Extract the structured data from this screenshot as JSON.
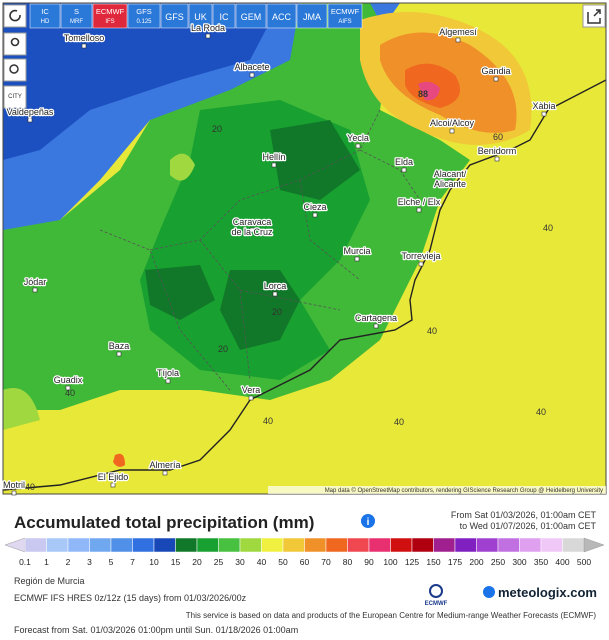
{
  "toolbar": {
    "buttons": [
      {
        "lines": [
          "IC",
          "HD"
        ]
      },
      {
        "lines": [
          "S",
          "MRF"
        ]
      },
      {
        "lines": [
          "ECMWF",
          "IFS"
        ],
        "active": true
      },
      {
        "lines": [
          "GFS",
          "0.125"
        ]
      },
      {
        "lines": [
          "GFS"
        ]
      },
      {
        "lines": [
          "UK"
        ]
      },
      {
        "lines": [
          "IC"
        ]
      },
      {
        "lines": [
          "GEM"
        ]
      },
      {
        "lines": [
          "ACC"
        ]
      },
      {
        "lines": [
          "JMA"
        ]
      },
      {
        "lines": [
          "ECMWF",
          "AIFS"
        ]
      }
    ],
    "city_button": "CITY"
  },
  "map": {
    "cities": [
      [
        "Tomelloso"
      ],
      [
        "La Roda"
      ],
      [
        "Albacete"
      ],
      [
        "Valdepeñas"
      ],
      [
        "Hellín"
      ],
      [
        "Yecla"
      ],
      [
        "Elda"
      ],
      [
        "Alcoi/Alcoy"
      ],
      [
        "Gandia"
      ],
      [
        "Xàbia"
      ],
      [
        "Benidorm"
      ],
      [
        "Algemesí"
      ],
      [
        "Alacant/",
        "Alicante"
      ],
      [
        "Elche / Elx"
      ],
      [
        "Cieza"
      ],
      [
        "Caravaca",
        "de la Cruz"
      ],
      [
        "Murcia"
      ],
      [
        "Torrevieja"
      ],
      [
        "Jódar"
      ],
      [
        "Lorca"
      ],
      [
        "Cartagena"
      ],
      [
        "Baza"
      ],
      [
        "Tíjola"
      ],
      [
        "Guadix"
      ],
      [
        "Vera"
      ],
      [
        "Almería"
      ],
      [
        "El Ejido"
      ],
      [
        "Motril"
      ]
    ],
    "contour_labels": [
      20,
      20,
      20,
      88,
      60,
      40,
      40,
      40,
      40,
      40,
      40,
      40
    ],
    "attribution": "Map data © OpenStreetMap contributors, rendering GIScience Research Group @ Heidelberg University"
  },
  "legend": {
    "title": "Accumulated total precipitation (mm)",
    "period_from": "From Sat 01/03/2026, 01:00am CET",
    "period_to": "to Wed 01/07/2026, 01:00am CET",
    "ticks": [
      0.1,
      1,
      2,
      3,
      5,
      7,
      10,
      15,
      20,
      25,
      30,
      40,
      50,
      60,
      70,
      80,
      90,
      100,
      125,
      150,
      175,
      200,
      250,
      300,
      350,
      400,
      500
    ],
    "colors": [
      "#e0d8f0",
      "#c8c8f0",
      "#a8c8f8",
      "#90b8f8",
      "#70a8f0",
      "#5090e8",
      "#3070e0",
      "#1848b8",
      "#107828",
      "#18a030",
      "#48c040",
      "#a0d840",
      "#f0f040",
      "#f0c838",
      "#f09028",
      "#f06820",
      "#f04850",
      "#e83070",
      "#d01010",
      "#b00010",
      "#a02090",
      "#8020c0",
      "#a040d0",
      "#c070e0",
      "#e0a0f0",
      "#f0c8f8",
      "#d8d8d8",
      "#b8b8b8"
    ]
  },
  "footer": {
    "region": "Región de Murcia",
    "model": "ECMWF IFS HRES 0z/12z (15 days)  from 01/03/2026/00z",
    "ecmwf_logo": "ECMWF",
    "brand": "meteologix.com",
    "service_note": "This service is based on data and products of the European Centre for Medium-range Weather Forecasts (ECMWF)",
    "forecast": "Forecast from Sat. 01/03/2026 01:00pm until Sun. 01/18/2026 01:00am"
  }
}
